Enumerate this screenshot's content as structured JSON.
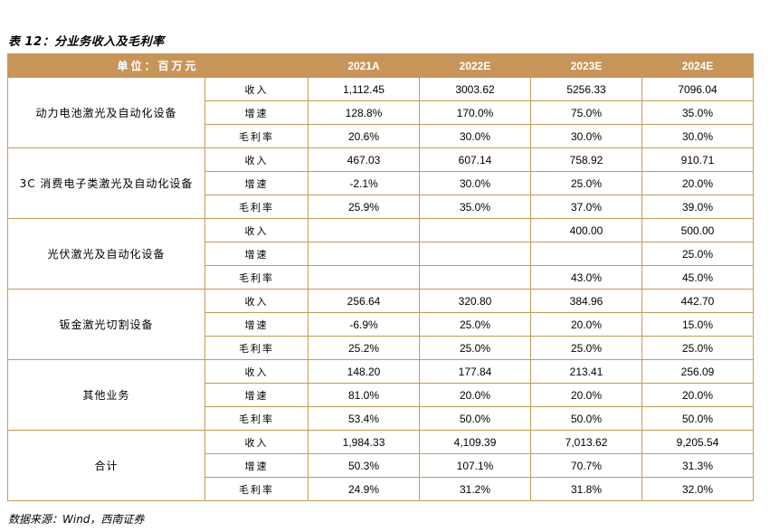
{
  "title": "表 12：分业务收入及毛利率",
  "header": {
    "unit_label": "单位：百万元",
    "years": [
      "2021A",
      "2022E",
      "2023E",
      "2024E"
    ]
  },
  "segments": [
    {
      "name": "动力电池激光及自动化设备",
      "rows": [
        {
          "metric": "收入",
          "values": [
            "1,112.45",
            "3003.62",
            "5256.33",
            "7096.04"
          ]
        },
        {
          "metric": "增速",
          "values": [
            "128.8%",
            "170.0%",
            "75.0%",
            "35.0%"
          ]
        },
        {
          "metric": "毛利率",
          "values": [
            "20.6%",
            "30.0%",
            "30.0%",
            "30.0%"
          ]
        }
      ]
    },
    {
      "name": "3C 消费电子类激光及自动化设备",
      "rows": [
        {
          "metric": "收入",
          "values": [
            "467.03",
            "607.14",
            "758.92",
            "910.71"
          ]
        },
        {
          "metric": "增速",
          "values": [
            "-2.1%",
            "30.0%",
            "25.0%",
            "20.0%"
          ]
        },
        {
          "metric": "毛利率",
          "values": [
            "25.9%",
            "35.0%",
            "37.0%",
            "39.0%"
          ]
        }
      ]
    },
    {
      "name": "光伏激光及自动化设备",
      "rows": [
        {
          "metric": "收入",
          "values": [
            "",
            "",
            "400.00",
            "500.00"
          ]
        },
        {
          "metric": "增速",
          "values": [
            "",
            "",
            "",
            "25.0%"
          ]
        },
        {
          "metric": "毛利率",
          "values": [
            "",
            "",
            "43.0%",
            "45.0%"
          ]
        }
      ]
    },
    {
      "name": "钣金激光切割设备",
      "rows": [
        {
          "metric": "收入",
          "values": [
            "256.64",
            "320.80",
            "384.96",
            "442.70"
          ]
        },
        {
          "metric": "增速",
          "values": [
            "-6.9%",
            "25.0%",
            "20.0%",
            "15.0%"
          ]
        },
        {
          "metric": "毛利率",
          "values": [
            "25.2%",
            "25.0%",
            "25.0%",
            "25.0%"
          ]
        }
      ]
    },
    {
      "name": "其他业务",
      "rows": [
        {
          "metric": "收入",
          "values": [
            "148.20",
            "177.84",
            "213.41",
            "256.09"
          ]
        },
        {
          "metric": "增速",
          "values": [
            "81.0%",
            "20.0%",
            "20.0%",
            "20.0%"
          ]
        },
        {
          "metric": "毛利率",
          "values": [
            "53.4%",
            "50.0%",
            "50.0%",
            "50.0%"
          ]
        }
      ]
    },
    {
      "name": "合计",
      "rows": [
        {
          "metric": "收入",
          "values": [
            "1,984.33",
            "4,109.39",
            "7,013.62",
            "9,205.54"
          ]
        },
        {
          "metric": "增速",
          "values": [
            "50.3%",
            "107.1%",
            "70.7%",
            "31.3%"
          ]
        },
        {
          "metric": "毛利率",
          "values": [
            "24.9%",
            "31.2%",
            "31.8%",
            "32.0%"
          ]
        }
      ]
    }
  ],
  "source": "数据来源：Wind，西南证券",
  "colors": {
    "header_bg": "#c7955a",
    "border": "#c79a57",
    "header_text": "#ffffff"
  }
}
